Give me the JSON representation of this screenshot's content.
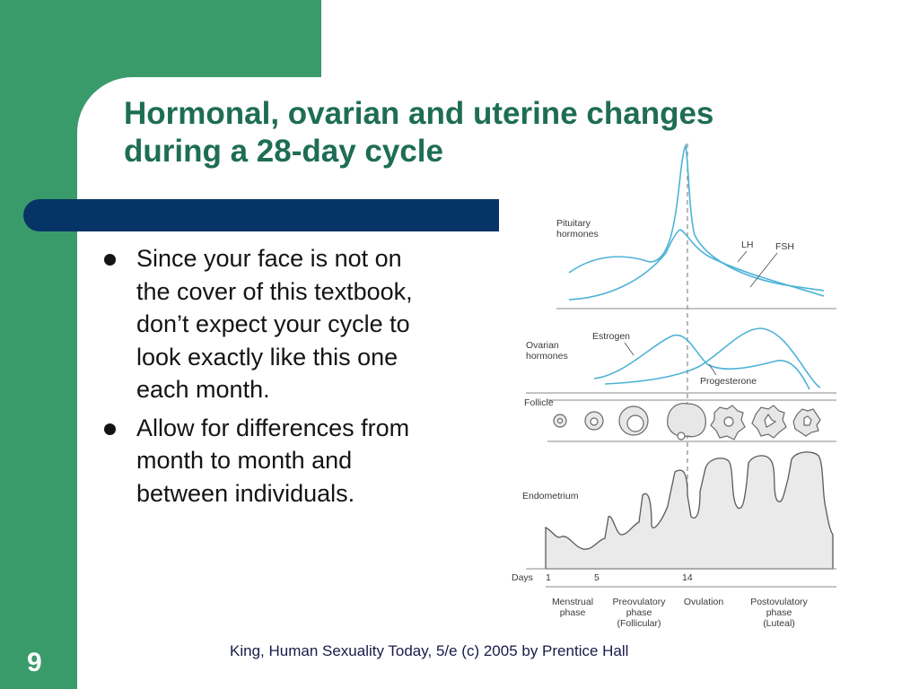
{
  "slide": {
    "title_line1": "Hormonal, ovarian and uterine changes",
    "title_line2": "during a 28-day cycle",
    "bullets": [
      "Since your face is not on the cover of this textbook, don’t expect your cycle to look exactly like this one each month.",
      "Allow for differences from month to month and between individuals."
    ],
    "footer": "King, Human Sexuality Today, 5/e (c) 2005 by Prentice Hall",
    "number": "9"
  },
  "figure": {
    "pituitary_label_1": "Pituitary",
    "pituitary_label_2": "hormones",
    "lh_label": "LH",
    "fsh_label": "FSH",
    "ovarian_label_1": "Ovarian",
    "ovarian_label_2": "hormones",
    "estrogen_label": "Estrogen",
    "progesterone_label": "Progesterone",
    "follicle_label": "Follicle",
    "endometrium_label": "Endometrium",
    "days_label": "Days",
    "days": [
      {
        "value": "1"
      },
      {
        "value": "5"
      },
      {
        "value": "14"
      }
    ],
    "phases": [
      {
        "line1": "Menstrual",
        "line2": "phase",
        "line3": ""
      },
      {
        "line1": "Preovulatory",
        "line2": "phase",
        "line3": "(Follicular)"
      },
      {
        "line1": "Ovulation",
        "line2": "",
        "line3": ""
      },
      {
        "line1": "Postovulatory",
        "line2": "phase",
        "line3": "(Luteal)"
      }
    ]
  },
  "colors": {
    "background_green": "#3a9b6a",
    "title_green": "#1e6d55",
    "band_navy": "#063466",
    "curve_blue": "#4db3d7"
  }
}
